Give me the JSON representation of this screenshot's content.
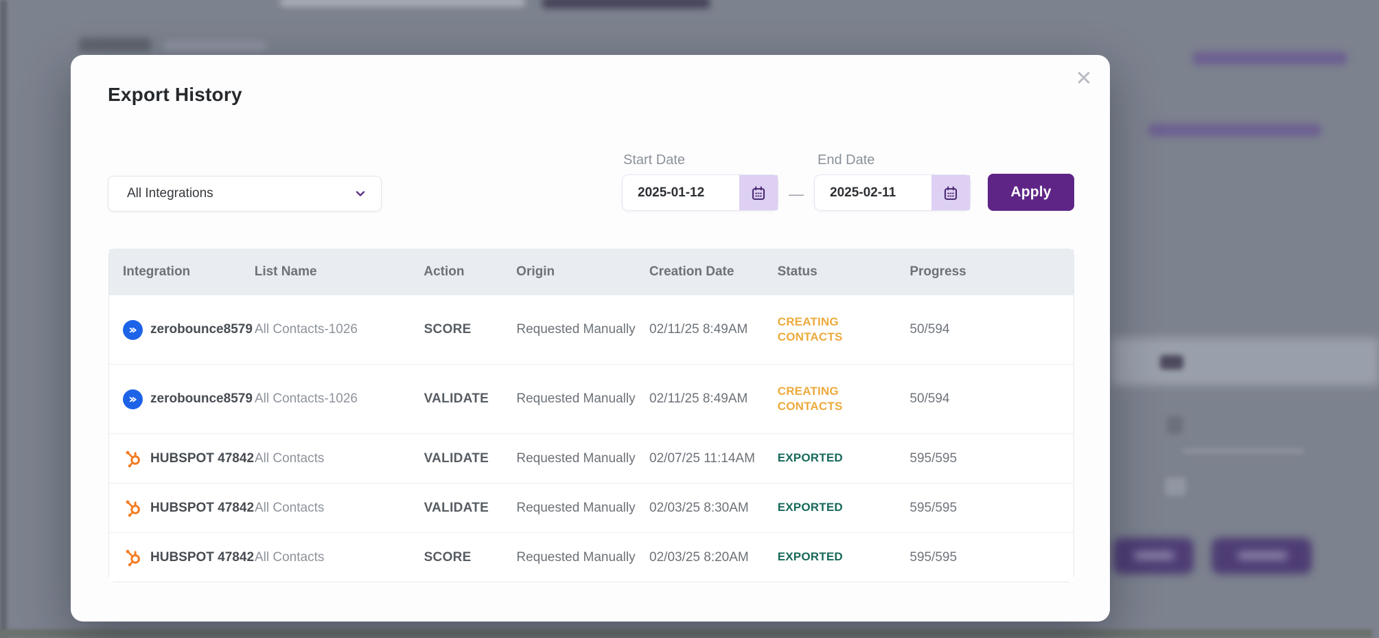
{
  "modal": {
    "title": "Export History",
    "close_glyph": "✕",
    "filters": {
      "integration_dropdown": {
        "value": "All Integrations"
      },
      "start_date": {
        "label": "Start Date",
        "value": "2025-01-12"
      },
      "end_date": {
        "label": "End Date",
        "value": "2025-02-11"
      },
      "range_separator": "—",
      "apply_label": "Apply"
    },
    "table": {
      "columns": [
        "Integration",
        "List Name",
        "Action",
        "Origin",
        "Creation Date",
        "Status",
        "Progress"
      ],
      "rows": [
        {
          "integration": "zerobounce8579",
          "icon": "zerobounce",
          "list_name": "All Contacts-1026",
          "action": "SCORE",
          "origin": "Requested Manually",
          "creation_date": "02/11/25 8:49AM",
          "status": "CREATING CONTACTS",
          "status_type": "creating",
          "progress": "50/594",
          "tall": true
        },
        {
          "integration": "zerobounce8579",
          "icon": "zerobounce",
          "list_name": "All Contacts-1026",
          "action": "VALIDATE",
          "origin": "Requested Manually",
          "creation_date": "02/11/25 8:49AM",
          "status": "CREATING CONTACTS",
          "status_type": "creating",
          "progress": "50/594",
          "tall": true
        },
        {
          "integration": "HUBSPOT 47842",
          "icon": "hubspot",
          "list_name": "All Contacts",
          "action": "VALIDATE",
          "origin": "Requested Manually",
          "creation_date": "02/07/25 11:14AM",
          "status": "EXPORTED",
          "status_type": "exported",
          "progress": "595/595",
          "tall": false
        },
        {
          "integration": "HUBSPOT 47842",
          "icon": "hubspot",
          "list_name": "All Contacts",
          "action": "VALIDATE",
          "origin": "Requested Manually",
          "creation_date": "02/03/25 8:30AM",
          "status": "EXPORTED",
          "status_type": "exported",
          "progress": "595/595",
          "tall": false
        },
        {
          "integration": "HUBSPOT 47842",
          "icon": "hubspot",
          "list_name": "All Contacts",
          "action": "SCORE",
          "origin": "Requested Manually",
          "creation_date": "02/03/25 8:20AM",
          "status": "EXPORTED",
          "status_type": "exported",
          "progress": "595/595",
          "tall": false
        }
      ]
    }
  },
  "colors": {
    "accent_purple": "#5E2586",
    "calendar_chip_bg": "#DDD0F2",
    "calendar_icon": "#4B2A73",
    "status_creating": "#ECAA3C",
    "status_exported": "#17695A",
    "zerobounce_blue": "#1D63E8",
    "hubspot_orange": "#F47B20",
    "header_bg": "#E9ECF1",
    "overlay_gray": "#7C828E"
  }
}
